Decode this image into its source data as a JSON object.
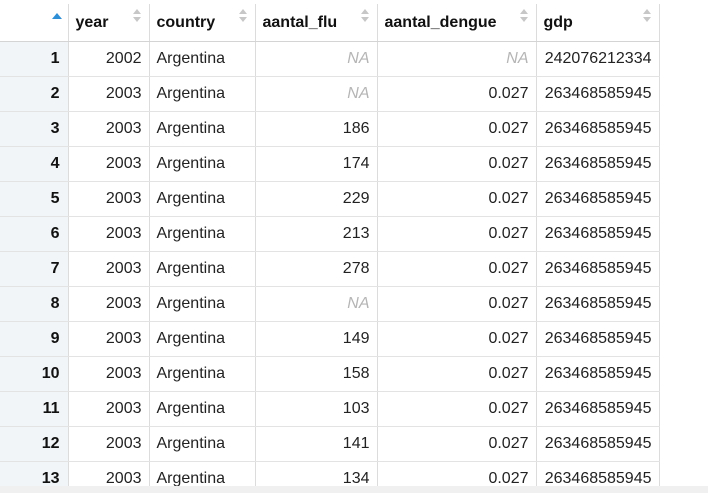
{
  "columns": [
    {
      "key": "rownum",
      "label": ""
    },
    {
      "key": "year",
      "label": "year"
    },
    {
      "key": "country",
      "label": "country"
    },
    {
      "key": "aantal_flu",
      "label": "aantal_flu"
    },
    {
      "key": "aantal_dengue",
      "label": "aantal_dengue"
    },
    {
      "key": "gdp",
      "label": "gdp"
    }
  ],
  "rows": [
    {
      "n": "1",
      "year": "2002",
      "country": "Argentina",
      "flu": "NA",
      "dengue": "NA",
      "gdp": "242076212334"
    },
    {
      "n": "2",
      "year": "2003",
      "country": "Argentina",
      "flu": "NA",
      "dengue": "0.027",
      "gdp": "263468585945"
    },
    {
      "n": "3",
      "year": "2003",
      "country": "Argentina",
      "flu": "186",
      "dengue": "0.027",
      "gdp": "263468585945"
    },
    {
      "n": "4",
      "year": "2003",
      "country": "Argentina",
      "flu": "174",
      "dengue": "0.027",
      "gdp": "263468585945"
    },
    {
      "n": "5",
      "year": "2003",
      "country": "Argentina",
      "flu": "229",
      "dengue": "0.027",
      "gdp": "263468585945"
    },
    {
      "n": "6",
      "year": "2003",
      "country": "Argentina",
      "flu": "213",
      "dengue": "0.027",
      "gdp": "263468585945"
    },
    {
      "n": "7",
      "year": "2003",
      "country": "Argentina",
      "flu": "278",
      "dengue": "0.027",
      "gdp": "263468585945"
    },
    {
      "n": "8",
      "year": "2003",
      "country": "Argentina",
      "flu": "NA",
      "dengue": "0.027",
      "gdp": "263468585945"
    },
    {
      "n": "9",
      "year": "2003",
      "country": "Argentina",
      "flu": "149",
      "dengue": "0.027",
      "gdp": "263468585945"
    },
    {
      "n": "10",
      "year": "2003",
      "country": "Argentina",
      "flu": "158",
      "dengue": "0.027",
      "gdp": "263468585945"
    },
    {
      "n": "11",
      "year": "2003",
      "country": "Argentina",
      "flu": "103",
      "dengue": "0.027",
      "gdp": "263468585945"
    },
    {
      "n": "12",
      "year": "2003",
      "country": "Argentina",
      "flu": "141",
      "dengue": "0.027",
      "gdp": "263468585945"
    },
    {
      "n": "13",
      "year": "2003",
      "country": "Argentina",
      "flu": "134",
      "dengue": "0.027",
      "gdp": "263468585945"
    }
  ],
  "sort": {
    "active_column": "rownum",
    "direction": "ascending",
    "indicator_color": "#2f8fd6"
  }
}
